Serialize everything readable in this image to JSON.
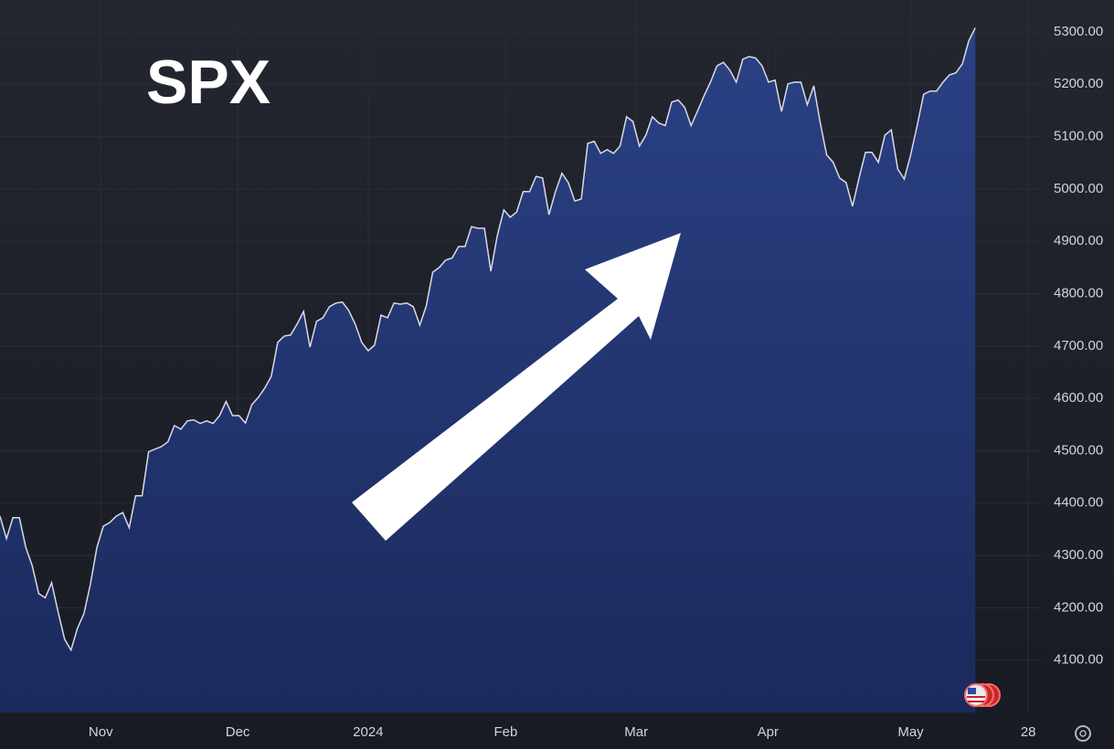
{
  "chart_data": {
    "type": "area",
    "title": "SPX",
    "values": [
      4375,
      4332,
      4372,
      4372,
      4315,
      4280,
      4227,
      4219,
      4248,
      4192,
      4140,
      4119,
      4161,
      4189,
      4245,
      4315,
      4356,
      4363,
      4375,
      4382,
      4353,
      4414,
      4414,
      4498,
      4503,
      4508,
      4517,
      4548,
      4541,
      4557,
      4559,
      4552,
      4557,
      4552,
      4567,
      4594,
      4567,
      4567,
      4553,
      4588,
      4602,
      4620,
      4642,
      4707,
      4719,
      4721,
      4742,
      4766,
      4698,
      4747,
      4754,
      4775,
      4782,
      4784,
      4768,
      4742,
      4707,
      4691,
      4702,
      4759,
      4754,
      4782,
      4780,
      4782,
      4775,
      4740,
      4777,
      4841,
      4850,
      4864,
      4868,
      4890,
      4890,
      4928,
      4925,
      4925,
      4843,
      4911,
      4960,
      4946,
      4956,
      4995,
      4995,
      5024,
      5021,
      4951,
      4995,
      5030,
      5012,
      4977,
      4981,
      5087,
      5091,
      5068,
      5075,
      5068,
      5082,
      5138,
      5129,
      5082,
      5103,
      5138,
      5126,
      5121,
      5166,
      5170,
      5156,
      5121,
      5149,
      5178,
      5204,
      5235,
      5242,
      5227,
      5204,
      5248,
      5253,
      5250,
      5235,
      5204,
      5208,
      5148,
      5201,
      5204,
      5204,
      5161,
      5197,
      5126,
      5065,
      5051,
      5021,
      5012,
      4967,
      5021,
      5070,
      5070,
      5051,
      5103,
      5113,
      5038,
      5019,
      5065,
      5121,
      5181,
      5187,
      5187,
      5204,
      5218,
      5222,
      5239,
      5283,
      5308
    ],
    "color": "#d8dbe6",
    "xlim": [
      0,
      161.3
    ],
    "xticks": [
      {
        "value": 15.6,
        "label": "Nov"
      },
      {
        "value": 36.8,
        "label": "Dec"
      },
      {
        "value": 57.0,
        "label": "2024"
      },
      {
        "value": 78.3,
        "label": "Feb"
      },
      {
        "value": 98.5,
        "label": "Mar"
      },
      {
        "value": 118.9,
        "label": "Apr"
      },
      {
        "value": 141.0,
        "label": "May"
      },
      {
        "value": 159.2,
        "label": "28"
      }
    ],
    "ylim": [
      4000,
      5361
    ],
    "yticks": [
      {
        "value": 4100,
        "label": "4100.00"
      },
      {
        "value": 4200,
        "label": "4200.00"
      },
      {
        "value": 4300,
        "label": "4300.00"
      },
      {
        "value": 4400,
        "label": "4400.00"
      },
      {
        "value": 4500,
        "label": "4500.00"
      },
      {
        "value": 4600,
        "label": "4600.00"
      },
      {
        "value": 4700,
        "label": "4700.00"
      },
      {
        "value": 4800,
        "label": "4800.00"
      },
      {
        "value": 4900,
        "label": "4900.00"
      },
      {
        "value": 5000,
        "label": "5000.00"
      },
      {
        "value": 5100,
        "label": "5100.00"
      },
      {
        "value": 5200,
        "label": "5200.00"
      },
      {
        "value": 5300,
        "label": "5300.00"
      }
    ],
    "grid": true
  }
}
